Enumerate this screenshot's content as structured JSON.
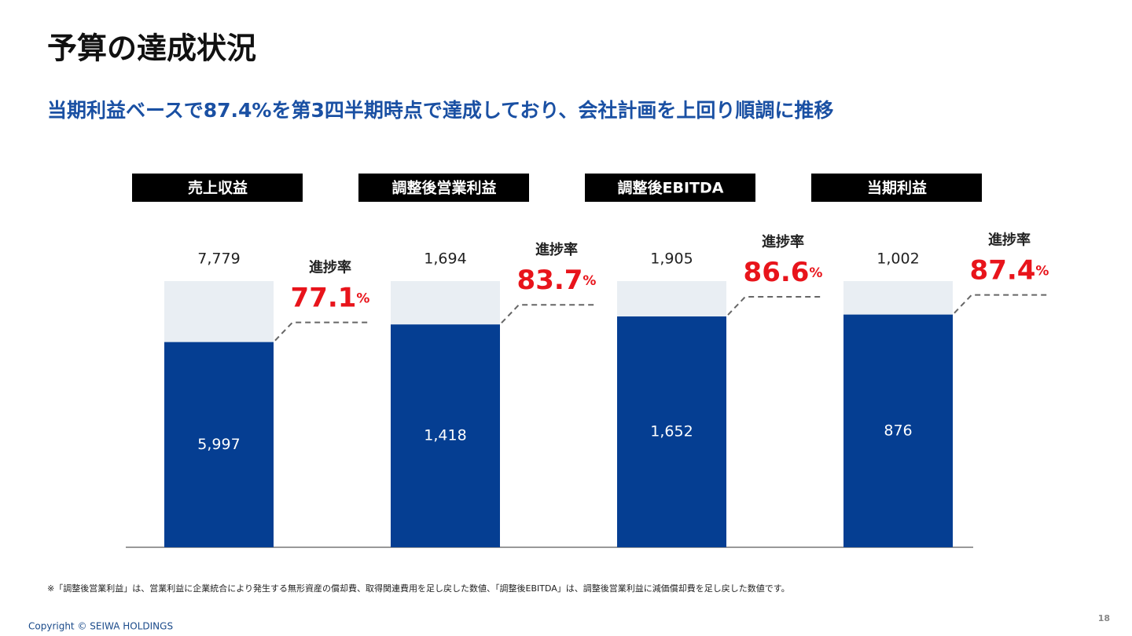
{
  "chart_data": {
    "type": "progress-bar",
    "title": "予算の達成状況",
    "subtitle": "当期利益ベースで87.4%を第3四半期時点で達成しており、会社計画を上回り順調に推移",
    "rate_caption": "進捗率",
    "rate_unit": "%",
    "plan_color": "#e9eef3",
    "actual_color": "#053e92",
    "rate_color": "#e8141b",
    "panels": [
      {
        "name": "売上収益",
        "plan": 7779,
        "plan_label": "7,779",
        "actual": 5997,
        "actual_label": "5,997",
        "rate": 77.1
      },
      {
        "name": "調整後営業利益",
        "plan": 1694,
        "plan_label": "1,694",
        "actual": 1418,
        "actual_label": "1,418",
        "rate": 83.7
      },
      {
        "name": "調整後EBITDA",
        "plan": 1905,
        "plan_label": "1,905",
        "actual": 1652,
        "actual_label": "1,652",
        "rate": 86.6
      },
      {
        "name": "当期利益",
        "plan": 1002,
        "plan_label": "1,002",
        "actual": 876,
        "actual_label": "876",
        "rate": 87.4
      }
    ]
  },
  "footer": {
    "note": "※「調整後営業利益」は、営業利益に企業統合により発生する無形資産の償却費、取得関連費用を足し戻した数値、「調整後EBITDA」は、調整後営業利益に減価償却費を足し戻した数値です。",
    "copyright": "Copyright © SEIWA HOLDINGS",
    "page": "18"
  }
}
